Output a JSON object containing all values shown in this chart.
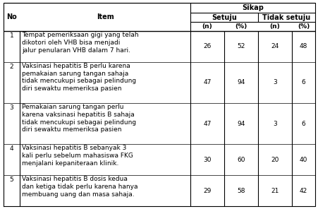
{
  "sikap_header": "Sikap",
  "setuju_header": "Setuju",
  "tidak_setuju_header": "Tidak setuju",
  "no_header": "No",
  "item_header": "Item",
  "sub_headers": [
    "(n)",
    "(%)",
    "(n)",
    "(%)"
  ],
  "rows": [
    {
      "no": "1",
      "item": "Tempat pemeriksaan gigi yang telah\ndikotori oleh VHB bisa menjadi\njalur penularan VHB dalam 7 hari.",
      "s_n": "26",
      "s_pct": "52",
      "ts_n": "24",
      "ts_pct": "48"
    },
    {
      "no": "2",
      "item": "Vaksinasi hepatitis B perlu karena\npemakaian sarung tangan sahaja\ntidak mencukupi sebagai pelindung\ndiri sewaktu memeriksa pasien",
      "s_n": "47",
      "s_pct": "94",
      "ts_n": "3",
      "ts_pct": "6"
    },
    {
      "no": "3",
      "item": "Pemakaian sarung tangan perlu\nkarena vaksinasi hepatitis B sahaja\ntidak mencukupi sebagai pelindung\ndiri sewaktu memeriksa pasien",
      "s_n": "47",
      "s_pct": "94",
      "ts_n": "3",
      "ts_pct": "6"
    },
    {
      "no": "4",
      "item": "Vaksinasi hepatitis B sebanyak 3\nkali perlu sebelum mahasiswa FKG\nmenjalani kepaniteraan klinik.",
      "s_n": "30",
      "s_pct": "60",
      "ts_n": "20",
      "ts_pct": "40"
    },
    {
      "no": "5",
      "item": "Vaksinasi hepatitis B dosis kedua\ndan ketiga tidak perlu karena hanya\nmembuang uang dan masa sahaja.",
      "s_n": "29",
      "s_pct": "58",
      "ts_n": "21",
      "ts_pct": "42"
    }
  ],
  "font_size": 6.5,
  "header_font_size": 7.0,
  "font_family": "DejaVu Sans"
}
